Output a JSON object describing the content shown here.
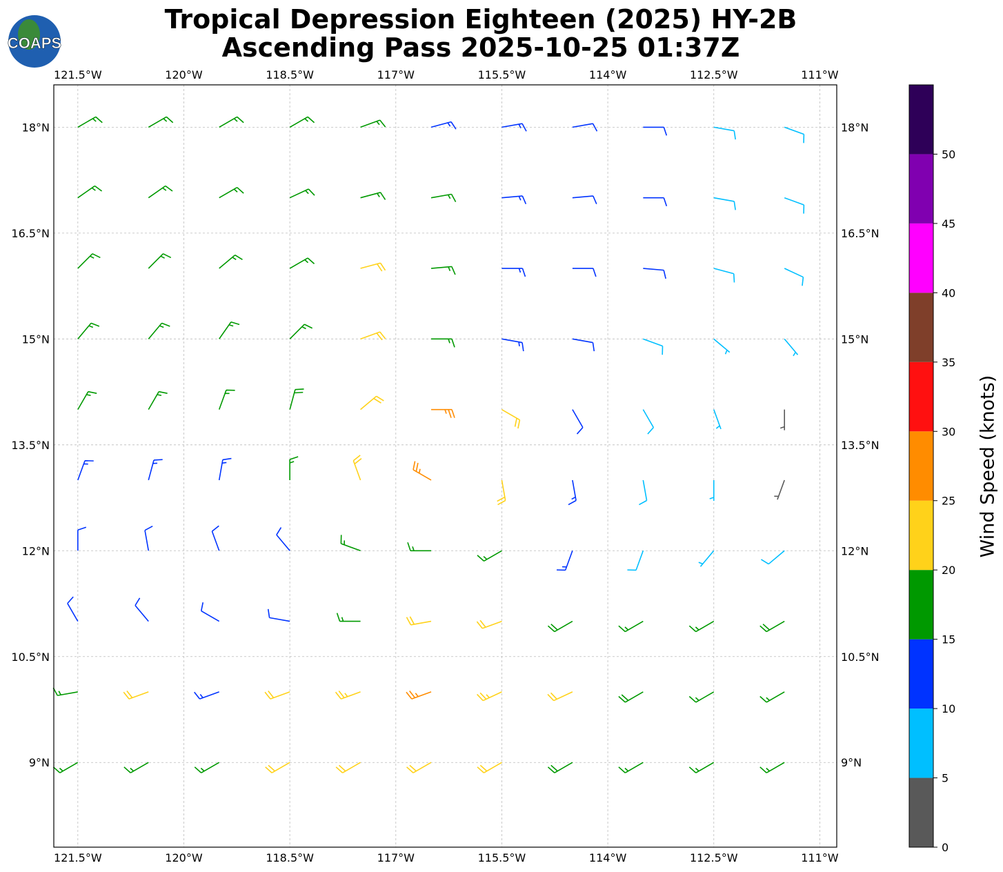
{
  "header": {
    "title_line1": "Tropical Depression Eighteen (2025) HY-2B",
    "title_line2": "Ascending Pass 2025-10-25 01:37Z",
    "logo": "COAPS"
  },
  "map": {
    "xlim": [
      -121.84,
      -110.76
    ],
    "ylim": [
      7.8,
      18.6
    ],
    "xticks": [
      {
        "value": -121.5,
        "label": "121.5°W"
      },
      {
        "value": -120,
        "label": "120°W"
      },
      {
        "value": -118.5,
        "label": "118.5°W"
      },
      {
        "value": -117,
        "label": "117°W"
      },
      {
        "value": -115.5,
        "label": "115.5°W"
      },
      {
        "value": -114,
        "label": "114°W"
      },
      {
        "value": -112.5,
        "label": "112.5°W"
      },
      {
        "value": -111,
        "label": "111°W"
      }
    ],
    "yticks": [
      {
        "value": 18,
        "label": "18°N"
      },
      {
        "value": 16.5,
        "label": "16.5°N"
      },
      {
        "value": 15,
        "label": "15°N"
      },
      {
        "value": 13.5,
        "label": "13.5°N"
      },
      {
        "value": 12,
        "label": "12°N"
      },
      {
        "value": 10.5,
        "label": "10.5°N"
      },
      {
        "value": 9,
        "label": "9°N"
      }
    ],
    "grid": true
  },
  "wind": {
    "lons": [
      -121.5,
      -120.5,
      -119.5,
      -118.5,
      -117.5,
      -116.5,
      -115.5,
      -114.5,
      -113.5,
      -112.5,
      -111.5
    ],
    "lats": [
      18,
      17,
      16,
      15,
      14,
      13,
      12,
      11,
      10,
      9
    ],
    "speed": [
      [
        17,
        17,
        17,
        16,
        15,
        14,
        13,
        12,
        10,
        9,
        8
      ],
      [
        17,
        17,
        16,
        16,
        16,
        15,
        13,
        12,
        10,
        9,
        8
      ],
      [
        17,
        16,
        16,
        17,
        21,
        17,
        14,
        12,
        11,
        9,
        8
      ],
      [
        16,
        16,
        16,
        17,
        22,
        16,
        13,
        10,
        8,
        7,
        7
      ],
      [
        15,
        15,
        16,
        18,
        22,
        27,
        20,
        12,
        8,
        6,
        4
      ],
      [
        13,
        13,
        13,
        15,
        20,
        26,
        22,
        13,
        8,
        5,
        3
      ],
      [
        12,
        12,
        12,
        12,
        15,
        17,
        16,
        13,
        9,
        7,
        9
      ],
      [
        12,
        12,
        11,
        10,
        15,
        21,
        21,
        18,
        17,
        17,
        18
      ],
      [
        17,
        20,
        14,
        20,
        23,
        25,
        23,
        21,
        18,
        17,
        16
      ],
      [
        16,
        17,
        17,
        20,
        22,
        22,
        20,
        19,
        17,
        17,
        16
      ]
    ],
    "direction": [
      [
        60,
        60,
        60,
        60,
        70,
        75,
        80,
        80,
        90,
        100,
        110
      ],
      [
        55,
        55,
        60,
        65,
        75,
        80,
        85,
        85,
        90,
        100,
        110
      ],
      [
        45,
        45,
        50,
        60,
        75,
        85,
        90,
        90,
        95,
        105,
        115
      ],
      [
        40,
        40,
        35,
        45,
        70,
        90,
        100,
        100,
        110,
        130,
        140
      ],
      [
        30,
        30,
        20,
        15,
        50,
        90,
        120,
        150,
        150,
        160,
        180
      ],
      [
        20,
        15,
        10,
        0,
        340,
        300,
        170,
        170,
        170,
        180,
        200
      ],
      [
        360,
        350,
        340,
        320,
        290,
        270,
        240,
        200,
        200,
        220,
        230
      ],
      [
        330,
        320,
        300,
        280,
        270,
        260,
        250,
        240,
        240,
        240,
        240
      ],
      [
        260,
        250,
        250,
        250,
        250,
        250,
        245,
        245,
        240,
        240,
        240
      ],
      [
        240,
        240,
        240,
        240,
        240,
        240,
        240,
        240,
        240,
        240,
        240
      ]
    ]
  },
  "colorbar": {
    "label": "Wind Speed (knots)",
    "bounds": [
      0,
      5,
      10,
      15,
      20,
      25,
      30,
      35,
      40,
      45,
      50,
      55
    ],
    "colors": [
      "#595959",
      "#00bfff",
      "#0033ff",
      "#009900",
      "#ffd21a",
      "#ff8c00",
      "#ff1010",
      "#7f3f2a",
      "#ff00ff",
      "#8000b0",
      "#2e0058"
    ],
    "ticks": [
      0,
      5,
      10,
      15,
      20,
      25,
      30,
      35,
      40,
      45,
      50
    ]
  }
}
